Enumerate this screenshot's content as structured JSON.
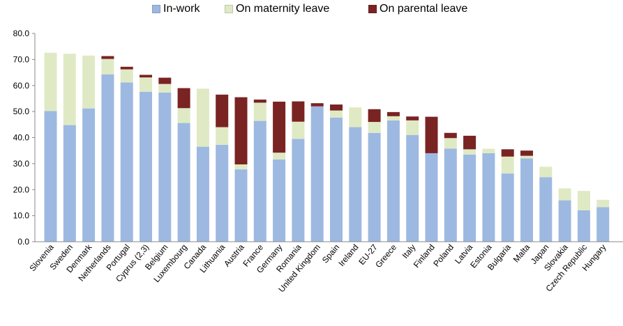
{
  "chart_data": {
    "type": "bar",
    "stacked": true,
    "legend_position": "top",
    "grid": false,
    "ylim": [
      0,
      80
    ],
    "yticks": [
      "0.0",
      "10.0",
      "20.0",
      "30.0",
      "40.0",
      "50.0",
      "60.0",
      "70.0",
      "80.0"
    ],
    "categories": [
      "Slovenia",
      "Sweden",
      "Denmark",
      "Netherlands",
      "Portugal",
      "Cyprus (2,3)",
      "Belgium",
      "Luxembourg",
      "Canada",
      "Lithuania",
      "Austria",
      "France",
      "Germany",
      "Romania",
      "United Kingdom",
      "Spain",
      "Ireland",
      "EU-27",
      "Greece",
      "Italy",
      "Finland",
      "Poland",
      "Latvia",
      "Estonia",
      "Bulgaria",
      "Malta",
      "Japan",
      "Slovakia",
      "Czech Republic",
      "Hungary"
    ],
    "series": [
      {
        "name": "In-work",
        "color": "#9DB9E1",
        "values": [
          50.2,
          44.8,
          51.2,
          64.3,
          61.2,
          57.6,
          57.3,
          45.6,
          36.5,
          37.2,
          27.8,
          46.4,
          31.6,
          39.5,
          52.0,
          47.7,
          44.0,
          41.8,
          46.6,
          41.0,
          34.0,
          35.8,
          33.5,
          34.0,
          26.2,
          32.0,
          24.8,
          15.9,
          12.1,
          13.3
        ]
      },
      {
        "name": "On maternity leave",
        "color": "#DFEAC4",
        "values": [
          22.4,
          27.4,
          20.3,
          5.9,
          5.0,
          5.5,
          3.3,
          5.7,
          22.3,
          6.8,
          1.9,
          7.0,
          2.6,
          6.6,
          0.0,
          2.7,
          7.6,
          4.2,
          1.6,
          5.6,
          0.0,
          4.0,
          2.0,
          1.7,
          6.5,
          1.0,
          4.0,
          4.6,
          7.4,
          2.8
        ]
      },
      {
        "name": "On parental leave",
        "color": "#7A2323",
        "values": [
          0.0,
          0.0,
          0.0,
          1.1,
          1.0,
          1.0,
          2.4,
          7.7,
          0.0,
          12.5,
          25.8,
          1.2,
          19.6,
          7.8,
          1.2,
          2.3,
          0.0,
          4.9,
          1.6,
          1.5,
          14.0,
          2.0,
          5.2,
          0.0,
          2.8,
          2.0,
          0.0,
          0.0,
          0.0,
          0.0
        ]
      }
    ]
  }
}
